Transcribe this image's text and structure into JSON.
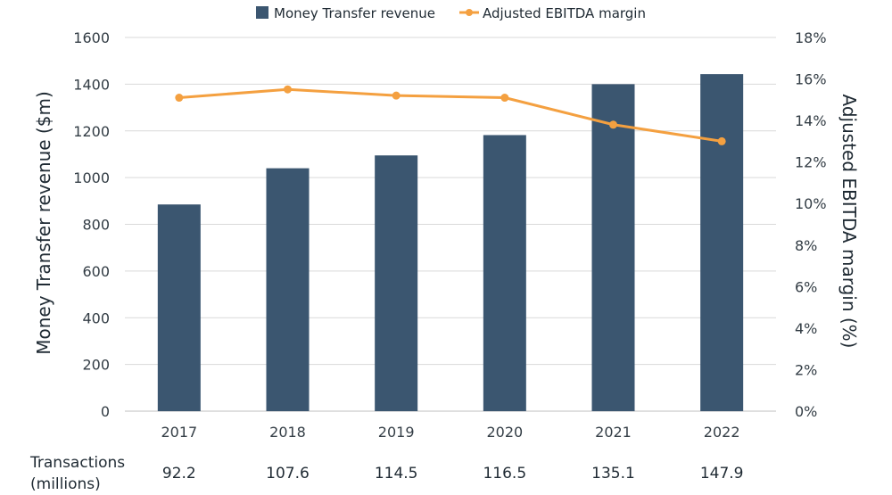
{
  "chart_data": {
    "type": "bar",
    "categories": [
      "2017",
      "2018",
      "2019",
      "2020",
      "2021",
      "2022"
    ],
    "series": [
      {
        "name": "Money Transfer revenue",
        "type": "bar",
        "axis": "left",
        "values": [
          885,
          1040,
          1095,
          1182,
          1400,
          1443
        ]
      },
      {
        "name": "Adjusted EBITDA margin",
        "type": "line",
        "axis": "right",
        "values": [
          15.1,
          15.5,
          15.2,
          15.1,
          13.8,
          13.0
        ]
      }
    ],
    "ylabel": "Money Transfer revenue ($m)",
    "y2label": "Adjusted EBITDA margin (%)",
    "ylim": [
      0,
      1600
    ],
    "y2lim": [
      0,
      18
    ],
    "yticks": [
      "0",
      "200",
      "400",
      "600",
      "800",
      "1000",
      "1200",
      "1400",
      "1600"
    ],
    "y2ticks": [
      "0%",
      "2%",
      "4%",
      "6%",
      "8%",
      "10%",
      "12%",
      "14%",
      "16%",
      "18%"
    ],
    "grid": true,
    "legend": "top",
    "colors": {
      "bar": "#3b5670",
      "line": "#f4a040",
      "grid": "#d9d9d9"
    },
    "row_label": [
      "Transactions",
      "(millions)"
    ],
    "row_values": [
      "92.2",
      "107.6",
      "114.5",
      "116.5",
      "135.1",
      "147.9"
    ]
  }
}
